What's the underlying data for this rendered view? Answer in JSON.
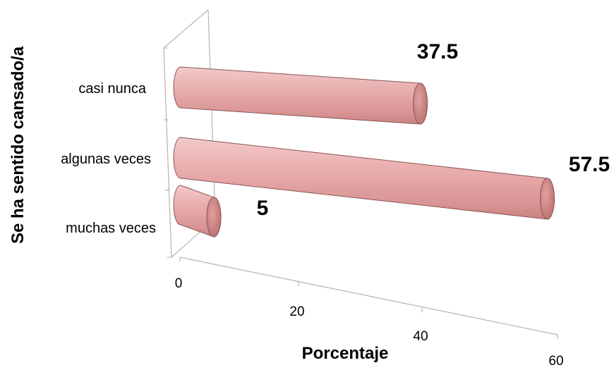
{
  "chart_data": {
    "type": "bar",
    "orientation": "horizontal",
    "style": "3d-cylinder",
    "categories": [
      "casi nunca",
      "algunas veces",
      "muchas veces"
    ],
    "values": [
      37.5,
      57.5,
      5
    ],
    "data_labels": [
      "37.5",
      "57.5",
      "5"
    ],
    "xlabel": "Porcentaje",
    "ylabel": "Se ha sentido cansado/a",
    "xlim": [
      0,
      60
    ],
    "x_ticks": [
      0,
      20,
      40,
      60
    ],
    "x_tick_labels": [
      "0",
      "20",
      "40",
      "60"
    ],
    "grid": false,
    "legend": "none",
    "colors": {
      "bar": "#e8a3a3",
      "bar_dark": "#b86f6f",
      "bar_light": "#f6d2d2"
    }
  }
}
